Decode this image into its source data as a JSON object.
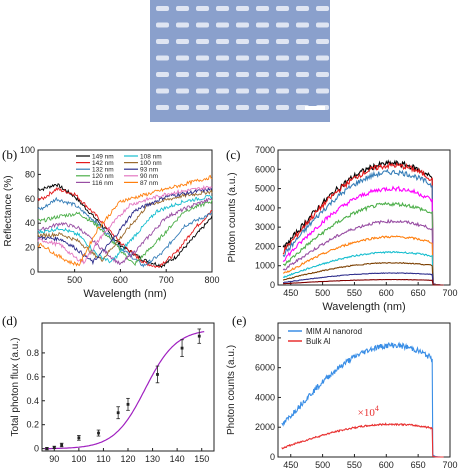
{
  "figure": {
    "panel_labels": [
      "(b)",
      "(c)",
      "(d)",
      "(e)"
    ]
  },
  "chart_data": [
    {
      "id": "b",
      "type": "line",
      "xlabel": "Wavelength (nm)",
      "ylabel": "Reflectance (%)",
      "xlim": [
        420,
        800
      ],
      "ylim": [
        0,
        100
      ],
      "xticks": [
        500,
        600,
        700,
        800
      ],
      "yticks": [
        0,
        20,
        40,
        60,
        80,
        100
      ],
      "legend_placement": "top",
      "series": [
        {
          "name": "149 nm",
          "color": "#000000",
          "min_wl": 690,
          "points": [
            [
              430,
              68
            ],
            [
              460,
              72
            ],
            [
              500,
              62
            ],
            [
              550,
              42
            ],
            [
              600,
              22
            ],
            [
              650,
              10
            ],
            [
              690,
              5
            ],
            [
              720,
              12
            ],
            [
              760,
              28
            ],
            [
              800,
              45
            ]
          ]
        },
        {
          "name": "142 nm",
          "color": "#e41a1c",
          "min_wl": 675,
          "points": [
            [
              430,
              60
            ],
            [
              460,
              68
            ],
            [
              500,
              64
            ],
            [
              550,
              45
            ],
            [
              600,
              24
            ],
            [
              650,
              8
            ],
            [
              680,
              4
            ],
            [
              720,
              15
            ],
            [
              760,
              35
            ],
            [
              800,
              50
            ]
          ]
        },
        {
          "name": "132 nm",
          "color": "#377eb8",
          "min_wl": 650,
          "points": [
            [
              430,
              52
            ],
            [
              460,
              60
            ],
            [
              500,
              55
            ],
            [
              550,
              40
            ],
            [
              600,
              20
            ],
            [
              650,
              5
            ],
            [
              690,
              15
            ],
            [
              740,
              38
            ],
            [
              800,
              48
            ]
          ]
        },
        {
          "name": "120 nm",
          "color": "#4daf4a",
          "min_wl": 630,
          "points": [
            [
              430,
              42
            ],
            [
              470,
              46
            ],
            [
              510,
              48
            ],
            [
              550,
              38
            ],
            [
              600,
              18
            ],
            [
              630,
              6
            ],
            [
              680,
              25
            ],
            [
              740,
              50
            ],
            [
              800,
              58
            ]
          ]
        },
        {
          "name": "116 nm",
          "color": "#984ea3",
          "min_wl": 600,
          "points": [
            [
              430,
              35
            ],
            [
              470,
              40
            ],
            [
              510,
              36
            ],
            [
              550,
              22
            ],
            [
              600,
              6
            ],
            [
              640,
              20
            ],
            [
              700,
              45
            ],
            [
              760,
              55
            ],
            [
              800,
              60
            ]
          ]
        },
        {
          "name": "108 nm",
          "color": "#17becf",
          "min_wl": 580,
          "points": [
            [
              430,
              33
            ],
            [
              470,
              36
            ],
            [
              510,
              30
            ],
            [
              550,
              14
            ],
            [
              580,
              8
            ],
            [
              620,
              25
            ],
            [
              680,
              50
            ],
            [
              740,
              58
            ],
            [
              800,
              62
            ]
          ]
        },
        {
          "name": "100 nm",
          "color": "#9a6a2e",
          "min_wl": 560,
          "points": [
            [
              430,
              30
            ],
            [
              470,
              31
            ],
            [
              510,
              25
            ],
            [
              540,
              15
            ],
            [
              560,
              10
            ],
            [
              600,
              28
            ],
            [
              660,
              55
            ],
            [
              730,
              62
            ],
            [
              800,
              66
            ]
          ]
        },
        {
          "name": "93 nm",
          "color": "#2e2e8c",
          "min_wl": 540,
          "points": [
            [
              430,
              28
            ],
            [
              470,
              27
            ],
            [
              500,
              20
            ],
            [
              540,
              8
            ],
            [
              580,
              25
            ],
            [
              630,
              50
            ],
            [
              700,
              62
            ],
            [
              800,
              68
            ]
          ]
        },
        {
          "name": "90 nm",
          "color": "#e377c2",
          "min_wl": 520,
          "points": [
            [
              430,
              26
            ],
            [
              470,
              22
            ],
            [
              500,
              12
            ],
            [
              520,
              8
            ],
            [
              560,
              30
            ],
            [
              620,
              55
            ],
            [
              700,
              64
            ],
            [
              800,
              70
            ]
          ]
        },
        {
          "name": "87 nm",
          "color": "#ff7f0e",
          "min_wl": 510,
          "points": [
            [
              430,
              22
            ],
            [
              460,
              14
            ],
            [
              490,
              8
            ],
            [
              510,
              6
            ],
            [
              550,
              35
            ],
            [
              600,
              58
            ],
            [
              700,
              68
            ],
            [
              800,
              78
            ]
          ]
        }
      ]
    },
    {
      "id": "c",
      "type": "line",
      "xlabel": "Wavelength (nm)",
      "ylabel": "Photon counts (a.u.)",
      "xlim": [
        430,
        700
      ],
      "ylim": [
        0,
        7000
      ],
      "xticks": [
        450,
        500,
        550,
        600,
        650,
        700
      ],
      "yticks": [
        0,
        1000,
        2000,
        3000,
        4000,
        5000,
        6000,
        7000
      ],
      "cutoff_wavelength": 672,
      "peak_wavelength": 610,
      "series": [
        {
          "color": "#000000",
          "peak": 6300,
          "start": 1950
        },
        {
          "color": "#e41a1c",
          "peak": 6200,
          "start": 1800
        },
        {
          "color": "#377eb8",
          "peak": 5850,
          "start": 1600
        },
        {
          "color": "#ff00ff",
          "peak": 5000,
          "start": 1350
        },
        {
          "color": "#4daf4a",
          "peak": 4200,
          "start": 1050
        },
        {
          "color": "#984ea3",
          "peak": 3300,
          "start": 800
        },
        {
          "color": "#ff7f0e",
          "peak": 2500,
          "start": 600
        },
        {
          "color": "#17becf",
          "peak": 1700,
          "start": 420
        },
        {
          "color": "#7b3f00",
          "peak": 1150,
          "start": 280
        },
        {
          "color": "#2e2e8c",
          "peak": 620,
          "start": 140
        },
        {
          "color": "#800000",
          "peak": 280,
          "start": 70
        }
      ]
    },
    {
      "id": "d",
      "type": "scatter",
      "xlabel": "",
      "ylabel": "Total photon flux (a.u.)",
      "xlim": [
        85,
        155
      ],
      "ylim": [
        -0.02,
        1.05
      ],
      "xticks": [
        90,
        100,
        110,
        120,
        130,
        140,
        150
      ],
      "yticks": [
        0,
        0.2,
        0.4,
        0.6,
        0.8
      ],
      "points": [
        {
          "x": 87,
          "y": 0.0,
          "err": 0.01
        },
        {
          "x": 90,
          "y": 0.01,
          "err": 0.01
        },
        {
          "x": 93,
          "y": 0.03,
          "err": 0.015
        },
        {
          "x": 100,
          "y": 0.09,
          "err": 0.02
        },
        {
          "x": 108,
          "y": 0.13,
          "err": 0.025
        },
        {
          "x": 116,
          "y": 0.3,
          "err": 0.05
        },
        {
          "x": 120,
          "y": 0.37,
          "err": 0.05
        },
        {
          "x": 132,
          "y": 0.62,
          "err": 0.07
        },
        {
          "x": 142,
          "y": 0.84,
          "err": 0.07
        },
        {
          "x": 149,
          "y": 0.94,
          "err": 0.06
        }
      ],
      "fit_color": "#a020c0",
      "fit": {
        "center": 127,
        "width": 12
      }
    },
    {
      "id": "e",
      "type": "line",
      "xlabel": "",
      "ylabel": "Photon counts (a.u.)",
      "xlim": [
        430,
        700
      ],
      "ylim": [
        0,
        9000
      ],
      "xticks": [
        450,
        500,
        550,
        600,
        650,
        700
      ],
      "yticks": [
        0,
        2000,
        4000,
        6000,
        8000
      ],
      "annotation": "×10",
      "annotation_sup": "4",
      "legend_placement": "top-left",
      "series": [
        {
          "name": "MIM Al nanorod",
          "color": "#3a8ee6",
          "peak": 7500,
          "start": 2300
        },
        {
          "name": "Bulk Al",
          "color": "#e83030",
          "peak": 2200,
          "start": 650
        }
      ]
    }
  ]
}
